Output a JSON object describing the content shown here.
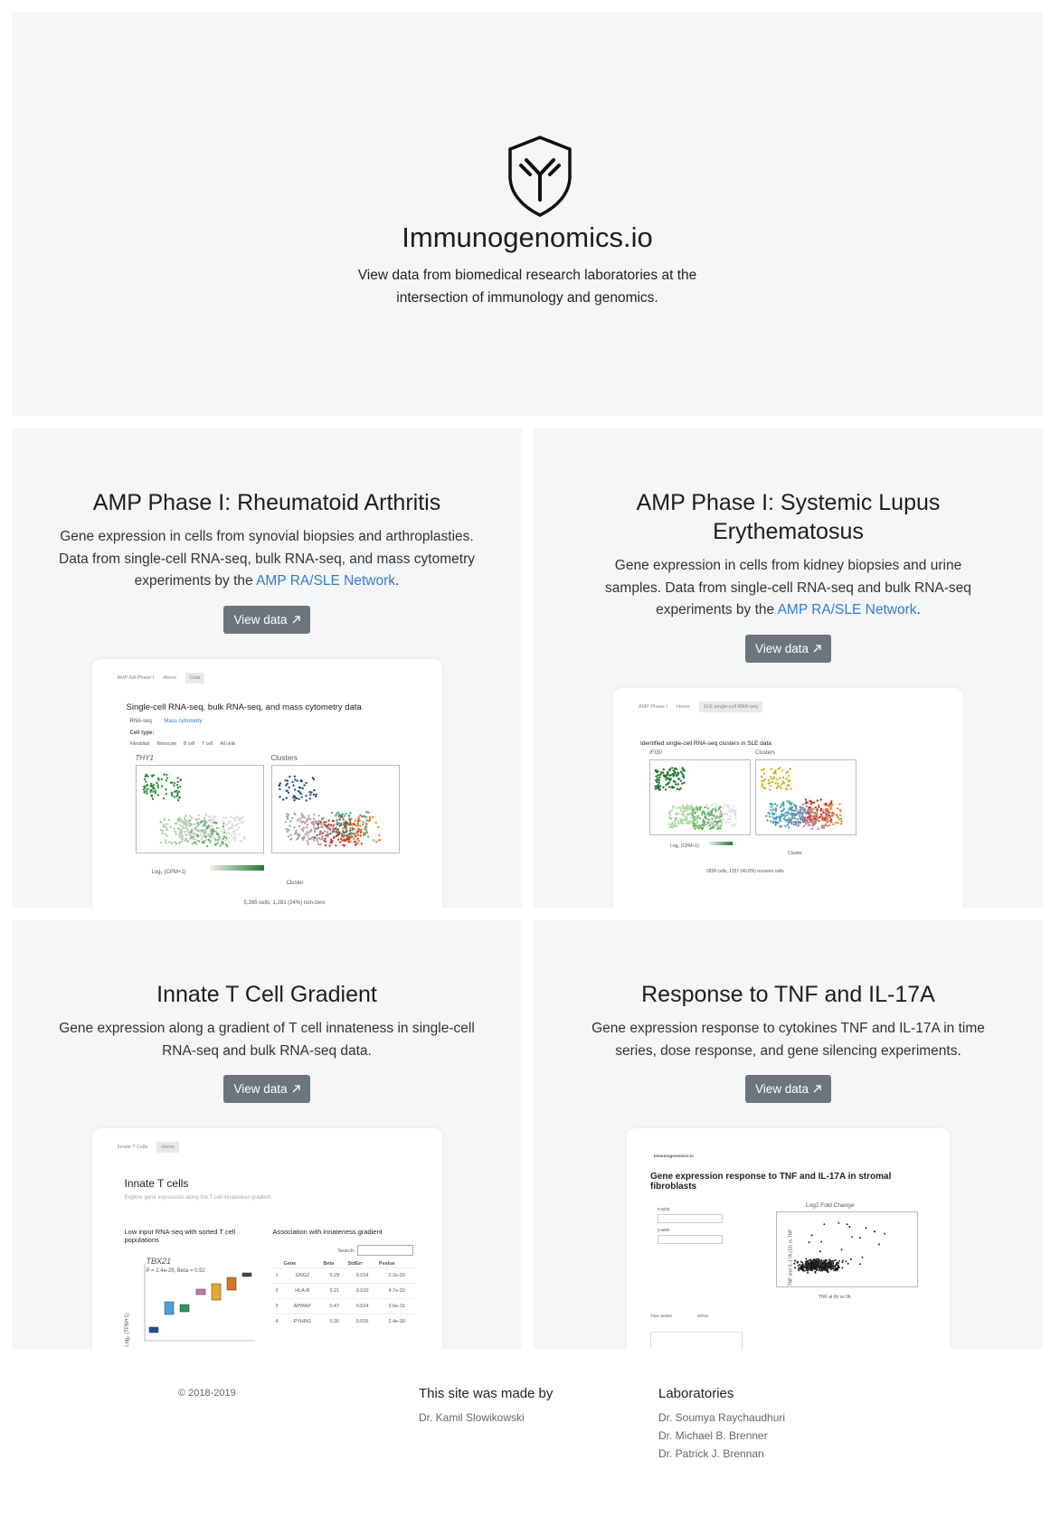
{
  "header": {
    "title": "Immunogenomics.io",
    "subtitle": "View data from biomedical research laboratories at the intersection of immunology and genomics."
  },
  "cards": [
    {
      "title": "AMP Phase I: Rheumatoid Arthritis",
      "description": "Gene expression in cells from synovial biopsies and arthroplasties. Data from single-cell RNA-seq, bulk RNA-seq, and mass cytometry experiments by the ",
      "link": "AMP RA/SLE Network",
      "description_end": ".",
      "button": "View data",
      "preview": {
        "tabs": [
          "AMP RA Phase I",
          "About",
          "Data"
        ],
        "heading": "Single-cell RNA-seq, bulk RNA-seq, and mass cytometry data",
        "subtabs": [
          "RNA-seq",
          "Mass cytometry"
        ],
        "cell_type": "Cell type:",
        "options": [
          "Fibroblast",
          "Monocyte",
          "B cell",
          "T cell",
          "All cells"
        ],
        "panels": [
          "THY1",
          "Clusters"
        ],
        "scale_label": "Log₂ (CPM+1)",
        "legend_label": "Cluster",
        "footnote": "5,265 cells; 1,281 (24%) non-zero"
      }
    },
    {
      "title": "AMP Phase I: Systemic Lupus Erythematosus",
      "description": "Gene expression in cells from kidney biopsies and urine samples. Data from single-cell RNA-seq and bulk RNA-seq experiments by the ",
      "link": "AMP RA/SLE Network",
      "description_end": ".",
      "button": "View data",
      "preview": {
        "tabs": [
          "AMP Phase I",
          "Home",
          "SLE single-cell RNA-seq"
        ],
        "heading": "Identified single-cell RNA-seq clusters in SLE data",
        "panels": [
          "IFI30",
          "Clusters"
        ],
        "scale_label": "Log₂ (CPM+1)",
        "legend_label": "Cluster",
        "footnote": "2838 cells, 1157 (40.8%) nonzero cells"
      }
    },
    {
      "title": "Innate T Cell Gradient",
      "description": "Gene expression along a gradient of T cell innateness in single-cell RNA-seq and bulk RNA-seq data.",
      "button": "View data",
      "preview": {
        "tabs": [
          "Innate T Cells",
          "Home"
        ],
        "heading": "Innate T cells",
        "subheading": "Explore gene expression along the T cell innateness gradient.",
        "panels": [
          "Low input RNA-seq with sorted T cell populations",
          "Association with innateness gradient"
        ],
        "plot_title": "TBX21",
        "plot_note": "P = 2.4e-29, Beta = 0.52",
        "y_label": "Log₂ (TPM+1)",
        "search": "Search:",
        "table": {
          "header": [
            "Gene",
            "Beta",
            "StdErr",
            "Pvalue"
          ],
          "rows": [
            [
              "1",
              "GNG2",
              "0.29",
              "0.014",
              "2.2e-32"
            ],
            [
              "2",
              "HLA-B",
              "0.21",
              "0.010",
              "4.7e-32"
            ],
            [
              "3",
              "APMAP",
              "0.47",
              "0.024",
              "3.6e-31"
            ],
            [
              "4",
              "PYHIN1",
              "0.30",
              "0.016",
              "2.4e-30"
            ]
          ]
        }
      }
    },
    {
      "title": "Response to TNF and IL-17A",
      "description": "Gene expression response to cytokines TNF and IL-17A in time series, dose response, and gene silencing experiments.",
      "button": "View data",
      "preview": {
        "brand": "Immunogenomics.io",
        "heading": "Gene expression response to TNF and IL-17A in stromal fibroblasts",
        "controls": [
          "x-axis:",
          "y-axis:"
        ],
        "plot_title": "Log2 Fold Change",
        "x_label": "TNF at 6h vs 0h",
        "y_label": "TNF and IL-17A (10) vs TNF",
        "bottom": [
          "Time Series",
          "siRNA"
        ]
      }
    }
  ],
  "footer": {
    "copyright": "© 2018-2019",
    "made_by_title": "This site was made by",
    "made_by": [
      "Dr. Kamil Slowikowski"
    ],
    "labs_title": "Laboratories",
    "labs": [
      "Dr. Soumya Raychaudhuri",
      "Dr. Michael B. Brenner",
      "Dr. Patrick J. Brennan"
    ]
  }
}
